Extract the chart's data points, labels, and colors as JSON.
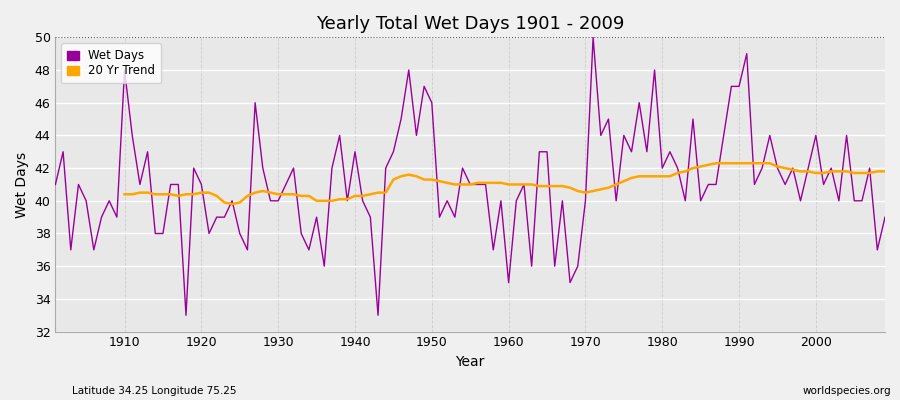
{
  "title": "Yearly Total Wet Days 1901 - 2009",
  "xlabel": "Year",
  "ylabel": "Wet Days",
  "subtitle": "Latitude 34.25 Longitude 75.25",
  "watermark": "worldspecies.org",
  "bg_color": "#f0f0f0",
  "plot_bg_color": "#e8e8e8",
  "wet_days_color": "#990099",
  "trend_color": "#ffa500",
  "ylim": [
    32,
    50
  ],
  "xlim": [
    1901,
    2009
  ],
  "years": [
    1901,
    1902,
    1903,
    1904,
    1905,
    1906,
    1907,
    1908,
    1909,
    1910,
    1911,
    1912,
    1913,
    1914,
    1915,
    1916,
    1917,
    1918,
    1919,
    1920,
    1921,
    1922,
    1923,
    1924,
    1925,
    1926,
    1927,
    1928,
    1929,
    1930,
    1931,
    1932,
    1933,
    1934,
    1935,
    1936,
    1937,
    1938,
    1939,
    1940,
    1941,
    1942,
    1943,
    1944,
    1945,
    1946,
    1947,
    1948,
    1949,
    1950,
    1951,
    1952,
    1953,
    1954,
    1955,
    1956,
    1957,
    1958,
    1959,
    1960,
    1961,
    1962,
    1963,
    1964,
    1965,
    1966,
    1967,
    1968,
    1969,
    1970,
    1971,
    1972,
    1973,
    1974,
    1975,
    1976,
    1977,
    1978,
    1979,
    1980,
    1981,
    1982,
    1983,
    1984,
    1985,
    1986,
    1987,
    1988,
    1989,
    1990,
    1991,
    1992,
    1993,
    1994,
    1995,
    1996,
    1997,
    1998,
    1999,
    2000,
    2001,
    2002,
    2003,
    2004,
    2005,
    2006,
    2007,
    2008,
    2009
  ],
  "wet_days": [
    41,
    43,
    37,
    41,
    40,
    37,
    39,
    40,
    39,
    48,
    44,
    41,
    43,
    38,
    38,
    41,
    41,
    33,
    42,
    41,
    38,
    39,
    39,
    40,
    38,
    37,
    46,
    42,
    40,
    40,
    41,
    42,
    38,
    37,
    39,
    36,
    42,
    44,
    40,
    43,
    40,
    39,
    33,
    42,
    43,
    45,
    48,
    44,
    47,
    46,
    39,
    40,
    39,
    42,
    41,
    41,
    41,
    37,
    40,
    35,
    40,
    41,
    36,
    43,
    43,
    36,
    40,
    35,
    36,
    40,
    50,
    44,
    45,
    40,
    44,
    43,
    46,
    43,
    48,
    42,
    43,
    42,
    40,
    45,
    40,
    41,
    41,
    44,
    47,
    47,
    49,
    41,
    42,
    44,
    42,
    41,
    42,
    40,
    42,
    44,
    41,
    42,
    40,
    44,
    40,
    40,
    42,
    37,
    39
  ],
  "trend_years": [
    1910,
    1911,
    1912,
    1913,
    1914,
    1915,
    1916,
    1917,
    1918,
    1919,
    1920,
    1921,
    1922,
    1923,
    1924,
    1925,
    1926,
    1927,
    1928,
    1929,
    1930,
    1931,
    1932,
    1933,
    1934,
    1935,
    1936,
    1937,
    1938,
    1939,
    1940,
    1941,
    1942,
    1943,
    1944,
    1945,
    1946,
    1947,
    1948,
    1949,
    1950,
    1951,
    1952,
    1953,
    1954,
    1955,
    1956,
    1957,
    1958,
    1959,
    1960,
    1961,
    1962,
    1963,
    1964,
    1965,
    1966,
    1967,
    1968,
    1969,
    1970,
    1971,
    1972,
    1973,
    1974,
    1975,
    1976,
    1977,
    1978,
    1979,
    1980,
    1981,
    1982,
    1983,
    1984,
    1985,
    1986,
    1987,
    1988,
    1989,
    1990,
    1991,
    1992,
    1993,
    1994,
    1995,
    1996,
    1997,
    1998,
    1999,
    2000,
    2001,
    2002,
    2003,
    2004,
    2005,
    2006,
    2007,
    2008,
    2009
  ],
  "trend_values": [
    40.4,
    40.4,
    40.5,
    40.5,
    40.4,
    40.4,
    40.4,
    40.3,
    40.4,
    40.4,
    40.5,
    40.5,
    40.3,
    39.9,
    39.8,
    39.9,
    40.3,
    40.5,
    40.6,
    40.5,
    40.4,
    40.4,
    40.4,
    40.3,
    40.3,
    40.0,
    40.0,
    40.0,
    40.1,
    40.1,
    40.3,
    40.3,
    40.4,
    40.5,
    40.5,
    41.3,
    41.5,
    41.6,
    41.5,
    41.3,
    41.3,
    41.2,
    41.1,
    41.0,
    41.0,
    41.0,
    41.1,
    41.1,
    41.1,
    41.1,
    41.0,
    41.0,
    41.0,
    41.0,
    40.9,
    40.9,
    40.9,
    40.9,
    40.8,
    40.6,
    40.5,
    40.6,
    40.7,
    40.8,
    41.0,
    41.2,
    41.4,
    41.5,
    41.5,
    41.5,
    41.5,
    41.5,
    41.7,
    41.8,
    42.0,
    42.1,
    42.2,
    42.3,
    42.3,
    42.3,
    42.3,
    42.3,
    42.3,
    42.3,
    42.3,
    42.1,
    42.0,
    41.9,
    41.8,
    41.8,
    41.7,
    41.7,
    41.8,
    41.8,
    41.8,
    41.7,
    41.7,
    41.7,
    41.8,
    41.8
  ]
}
